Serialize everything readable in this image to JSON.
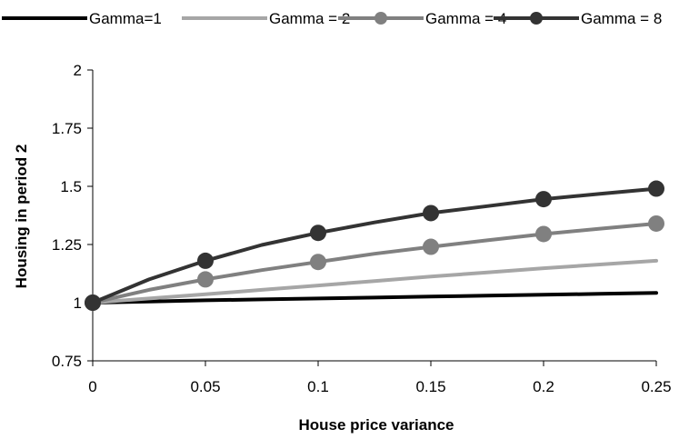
{
  "chart_data": {
    "type": "line",
    "title": "",
    "xlabel": "House price variance",
    "ylabel": "Housing in period 2",
    "xlim": [
      0,
      0.25
    ],
    "ylim": [
      0.75,
      2
    ],
    "x_ticks": [
      "0",
      "0.05",
      "0.1",
      "0.15",
      "0.2",
      "0.25"
    ],
    "y_ticks": [
      "0.75",
      "1",
      "1.25",
      "1.5",
      "1.75",
      "2"
    ],
    "grid": false,
    "legend_position": "top",
    "x": [
      0,
      0.025,
      0.05,
      0.075,
      0.1,
      0.125,
      0.15,
      0.175,
      0.2,
      0.225,
      0.25
    ],
    "series": [
      {
        "name": "Gamma=1",
        "color": "#000000",
        "markers": false,
        "values": [
          1.0,
          1.005,
          1.01,
          1.014,
          1.018,
          1.022,
          1.026,
          1.03,
          1.034,
          1.038,
          1.042
        ]
      },
      {
        "name": "Gamma = 2",
        "color": "#a6a6a6",
        "markers": false,
        "values": [
          1.0,
          1.018,
          1.036,
          1.055,
          1.074,
          1.093,
          1.112,
          1.13,
          1.148,
          1.164,
          1.18
        ]
      },
      {
        "name": "Gamma = 4",
        "color": "#808080",
        "markers": true,
        "values": [
          1.0,
          1.055,
          1.1,
          1.14,
          1.175,
          1.21,
          1.24,
          1.268,
          1.295,
          1.318,
          1.34
        ]
      },
      {
        "name": "Gamma = 8",
        "color": "#333333",
        "markers": true,
        "values": [
          1.0,
          1.1,
          1.18,
          1.248,
          1.3,
          1.345,
          1.385,
          1.415,
          1.445,
          1.468,
          1.49
        ]
      }
    ],
    "marker_x": [
      0,
      0.05,
      0.1,
      0.15,
      0.2,
      0.25
    ]
  }
}
